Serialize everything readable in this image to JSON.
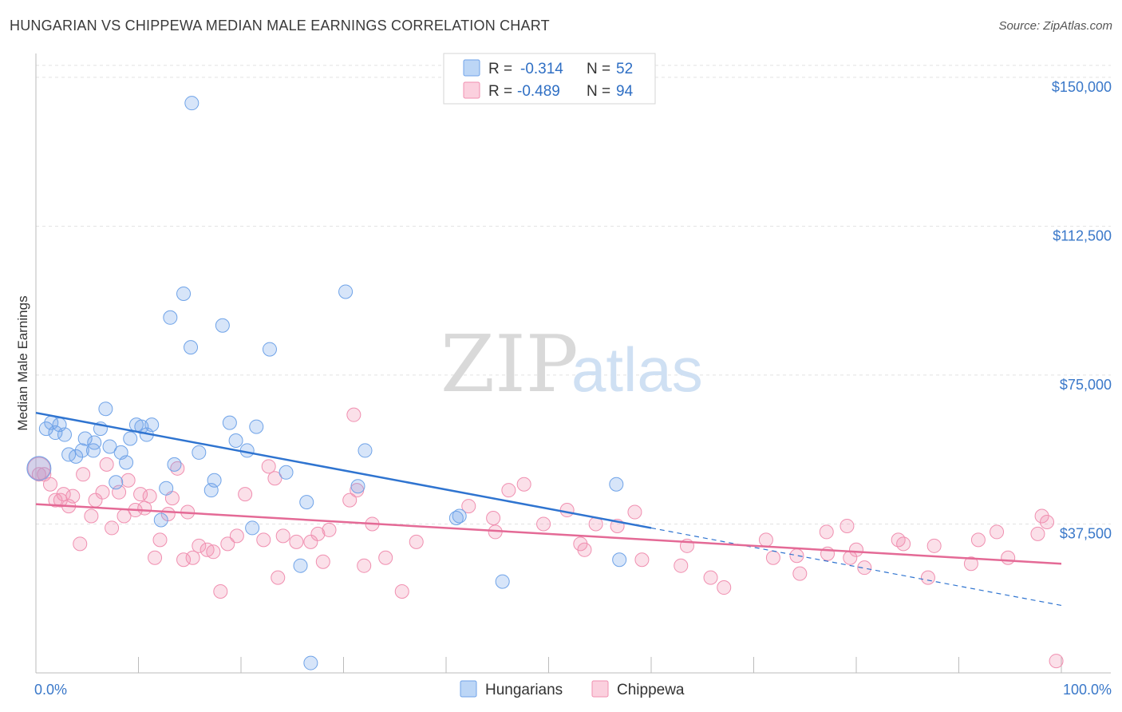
{
  "header": {
    "title": "HUNGARIAN VS CHIPPEWA MEDIAN MALE EARNINGS CORRELATION CHART",
    "source": "Source: ZipAtlas.com"
  },
  "watermark": {
    "zip": "ZIP",
    "atlas": "atlas"
  },
  "legend": {
    "rows": [
      {
        "r_label": "R =",
        "r_value": "-0.314",
        "n_label": "N =",
        "n_value": "52",
        "color": "#6fa3e8"
      },
      {
        "r_label": "R =",
        "r_value": "-0.489",
        "n_label": "N =",
        "n_value": "94",
        "color": "#f08fb0"
      }
    ]
  },
  "bottom_legend": {
    "items": [
      {
        "label": "Hungarians",
        "color": "#6fa3e8"
      },
      {
        "label": "Chippewa",
        "color": "#f08fb0"
      }
    ]
  },
  "chart_data": {
    "type": "scatter",
    "title": "HUNGARIAN VS CHIPPEWA MEDIAN MALE EARNINGS CORRELATION CHART",
    "xlabel": "",
    "ylabel": "Median Male Earnings",
    "xlim": [
      0,
      100
    ],
    "ylim": [
      0,
      156000
    ],
    "x_tick_labels": [
      "0.0%",
      "100.0%"
    ],
    "y_ticks": [
      37500,
      75000,
      112500,
      150000
    ],
    "y_tick_labels": [
      "$37,500",
      "$75,000",
      "$112,500",
      "$150,000"
    ],
    "grid": "horizontal dashed",
    "legend_position": "top-center",
    "series": [
      {
        "name": "Hungarians",
        "color": "#6fa3e8",
        "trend": {
          "x": [
            0,
            60
          ],
          "y": [
            65500,
            36500
          ],
          "dashed_extension": {
            "x": [
              60,
              100
            ],
            "y": [
              36500,
              17000
            ]
          }
        },
        "points": [
          [
            0.3,
            51500
          ],
          [
            1.0,
            61500
          ],
          [
            1.5,
            63000
          ],
          [
            1.9,
            60500
          ],
          [
            2.3,
            62500
          ],
          [
            2.8,
            60000
          ],
          [
            3.2,
            55000
          ],
          [
            3.9,
            54500
          ],
          [
            4.5,
            56000
          ],
          [
            4.8,
            59000
          ],
          [
            5.6,
            56000
          ],
          [
            5.7,
            58000
          ],
          [
            6.3,
            61500
          ],
          [
            6.8,
            66500
          ],
          [
            7.2,
            57000
          ],
          [
            7.8,
            48000
          ],
          [
            8.3,
            55500
          ],
          [
            8.8,
            53000
          ],
          [
            9.2,
            59000
          ],
          [
            9.8,
            62500
          ],
          [
            10.3,
            62000
          ],
          [
            10.8,
            60000
          ],
          [
            11.3,
            62500
          ],
          [
            12.2,
            38500
          ],
          [
            12.7,
            46500
          ],
          [
            13.1,
            89500
          ],
          [
            13.5,
            52500
          ],
          [
            14.4,
            95500
          ],
          [
            15.1,
            82000
          ],
          [
            15.2,
            143500
          ],
          [
            15.9,
            55500
          ],
          [
            17.1,
            46000
          ],
          [
            17.4,
            48500
          ],
          [
            18.2,
            87500
          ],
          [
            18.9,
            63000
          ],
          [
            19.5,
            58500
          ],
          [
            20.6,
            56000
          ],
          [
            21.1,
            36500
          ],
          [
            21.5,
            62000
          ],
          [
            22.8,
            81500
          ],
          [
            24.4,
            50500
          ],
          [
            25.8,
            27000
          ],
          [
            26.4,
            43000
          ],
          [
            26.8,
            2500
          ],
          [
            30.2,
            96000
          ],
          [
            31.4,
            47000
          ],
          [
            32.1,
            56000
          ],
          [
            41.0,
            39000
          ],
          [
            41.3,
            39500
          ],
          [
            45.5,
            23000
          ],
          [
            56.6,
            47500
          ],
          [
            56.9,
            28500
          ]
        ]
      },
      {
        "name": "Chippewa",
        "color": "#f08fb0",
        "trend": {
          "x": [
            0,
            100
          ],
          "y": [
            42500,
            27500
          ]
        },
        "points": [
          [
            0.3,
            50000
          ],
          [
            0.8,
            50000
          ],
          [
            1.4,
            47500
          ],
          [
            1.9,
            43500
          ],
          [
            2.4,
            43500
          ],
          [
            2.7,
            45000
          ],
          [
            3.2,
            42000
          ],
          [
            3.6,
            44500
          ],
          [
            4.3,
            32500
          ],
          [
            4.6,
            50000
          ],
          [
            5.4,
            39500
          ],
          [
            5.8,
            43500
          ],
          [
            6.5,
            45500
          ],
          [
            6.9,
            52500
          ],
          [
            7.4,
            36500
          ],
          [
            8.1,
            45500
          ],
          [
            8.6,
            39500
          ],
          [
            9.0,
            48500
          ],
          [
            9.7,
            41000
          ],
          [
            10.2,
            45000
          ],
          [
            10.6,
            41500
          ],
          [
            11.1,
            44500
          ],
          [
            11.6,
            29000
          ],
          [
            12.1,
            33500
          ],
          [
            12.9,
            40000
          ],
          [
            13.3,
            44000
          ],
          [
            13.8,
            51500
          ],
          [
            14.4,
            28500
          ],
          [
            14.8,
            40500
          ],
          [
            15.3,
            29000
          ],
          [
            15.9,
            32000
          ],
          [
            16.7,
            31000
          ],
          [
            17.3,
            30500
          ],
          [
            18.0,
            20500
          ],
          [
            18.7,
            32500
          ],
          [
            19.6,
            34500
          ],
          [
            20.4,
            45000
          ],
          [
            22.2,
            33500
          ],
          [
            22.7,
            52000
          ],
          [
            23.3,
            49000
          ],
          [
            23.6,
            24000
          ],
          [
            24.1,
            34500
          ],
          [
            25.4,
            33000
          ],
          [
            26.8,
            33000
          ],
          [
            27.5,
            35000
          ],
          [
            28.0,
            28000
          ],
          [
            28.6,
            36000
          ],
          [
            30.6,
            43500
          ],
          [
            31.0,
            65000
          ],
          [
            31.3,
            46000
          ],
          [
            32.0,
            27000
          ],
          [
            32.8,
            37500
          ],
          [
            34.1,
            29000
          ],
          [
            35.7,
            20500
          ],
          [
            37.1,
            33000
          ],
          [
            42.2,
            42000
          ],
          [
            44.6,
            39000
          ],
          [
            44.8,
            35500
          ],
          [
            46.1,
            46000
          ],
          [
            47.6,
            47500
          ],
          [
            49.5,
            37500
          ],
          [
            51.8,
            41000
          ],
          [
            53.1,
            32500
          ],
          [
            53.5,
            31000
          ],
          [
            54.6,
            37500
          ],
          [
            56.7,
            37000
          ],
          [
            58.4,
            40500
          ],
          [
            59.1,
            28500
          ],
          [
            62.9,
            27000
          ],
          [
            63.5,
            32000
          ],
          [
            65.8,
            24000
          ],
          [
            67.1,
            21500
          ],
          [
            71.2,
            33500
          ],
          [
            71.9,
            29000
          ],
          [
            74.2,
            29500
          ],
          [
            74.5,
            25000
          ],
          [
            77.1,
            35500
          ],
          [
            77.2,
            30000
          ],
          [
            79.1,
            37000
          ],
          [
            79.4,
            29000
          ],
          [
            80.0,
            31000
          ],
          [
            80.8,
            26500
          ],
          [
            84.1,
            33500
          ],
          [
            84.6,
            32500
          ],
          [
            87.0,
            24000
          ],
          [
            87.6,
            32000
          ],
          [
            91.2,
            27500
          ],
          [
            91.9,
            33500
          ],
          [
            93.7,
            35500
          ],
          [
            94.8,
            29000
          ],
          [
            97.7,
            35000
          ],
          [
            98.1,
            39500
          ],
          [
            98.6,
            38000
          ],
          [
            99.5,
            3000
          ]
        ]
      }
    ]
  }
}
